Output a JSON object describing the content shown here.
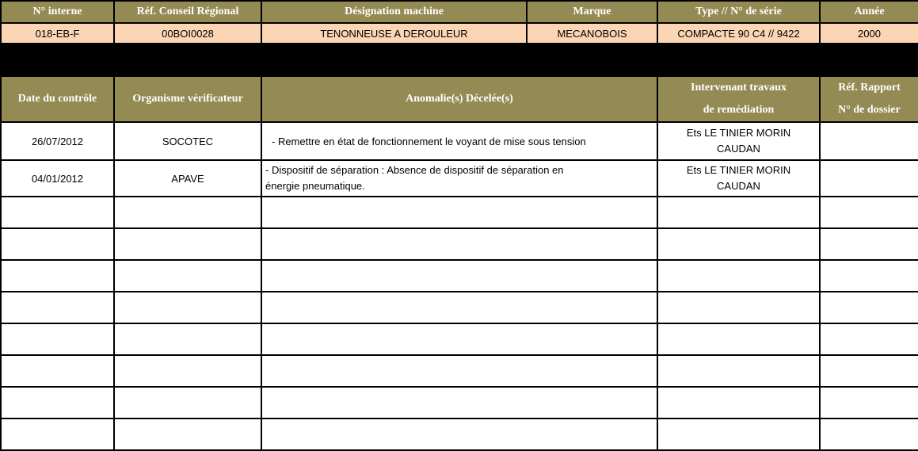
{
  "machine": {
    "headers": [
      "N° interne",
      "Réf. Conseil Régional",
      "Désignation machine",
      "Marque",
      "Type  //  N° de série",
      "Année"
    ],
    "values": [
      "018-EB-F",
      "00BOI0028",
      "TENONNEUSE A DEROULEUR",
      "MECANOBOIS",
      "COMPACTE 90 C4 // 9422",
      "2000"
    ]
  },
  "controls": {
    "headers": [
      "Date du contrôle",
      "Organisme vérificateur",
      "Anomalie(s) Décelée(s)",
      "Intervenant travaux",
      "de remédiation",
      "Réf. Rapport",
      "N° de dossier"
    ],
    "rows": [
      {
        "date": "26/07/2012",
        "org": "SOCOTEC",
        "anomalie": " - Remettre en état de fonctionnement le voyant de mise sous tension",
        "intervenant1": "Ets LE TINIER MORIN",
        "intervenant2": "CAUDAN",
        "ref": ""
      },
      {
        "date": "04/01/2012",
        "org": "APAVE",
        "anomalie": " - Dispositif de séparation : Absence de dispositif de séparation en énergie pneumatique.",
        "intervenant1": "Ets LE TINIER MORIN",
        "intervenant2": "CAUDAN",
        "ref": ""
      }
    ],
    "empty_rows": 8
  },
  "colors": {
    "header": "#948A54",
    "data": "#FCD5B4"
  }
}
